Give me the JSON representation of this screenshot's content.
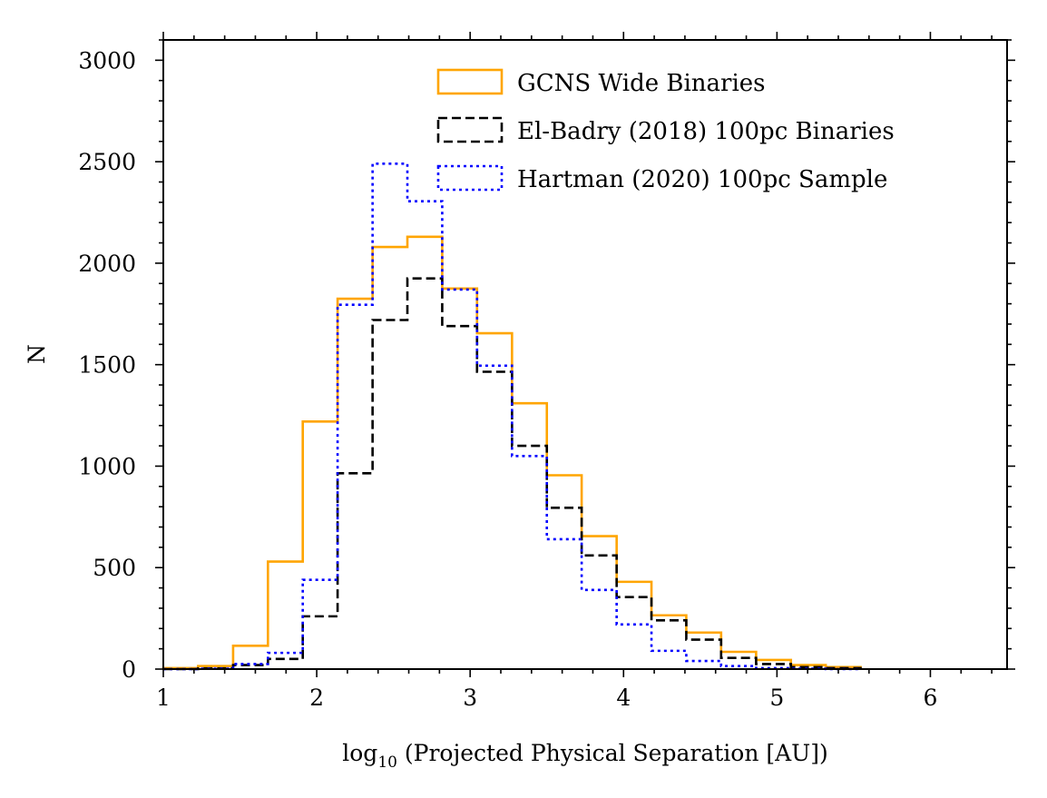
{
  "chart_data": {
    "type": "histogram",
    "title": "",
    "xlabel": {
      "prefix": "log",
      "subscript": "10",
      "suffix": " (Projected Physical Separation [AU])"
    },
    "ylabel": "N",
    "xlim": [
      1,
      6.5
    ],
    "ylim": [
      0,
      3100
    ],
    "x_ticks": [
      1,
      2,
      3,
      4,
      5,
      6
    ],
    "x_tick_labels": [
      "1",
      "2",
      "3",
      "4",
      "5",
      "6"
    ],
    "y_ticks": [
      0,
      500,
      1000,
      1500,
      2000,
      2500,
      3000
    ],
    "y_tick_labels": [
      "0",
      "500",
      "1000",
      "1500",
      "2000",
      "2500",
      "3000"
    ],
    "bin_edges": [
      1.0,
      1.227,
      1.455,
      1.682,
      1.909,
      2.136,
      2.364,
      2.591,
      2.818,
      3.045,
      3.273,
      3.5,
      3.727,
      3.955,
      4.182,
      4.409,
      4.636,
      4.864,
      5.091,
      5.318,
      5.545
    ],
    "series": [
      {
        "name": "GCNS Wide Binaries",
        "color": "#ffa500",
        "style": "solid",
        "values": [
          5,
          15,
          115,
          530,
          1220,
          1825,
          2080,
          2130,
          1875,
          1655,
          1310,
          955,
          655,
          430,
          265,
          180,
          85,
          45,
          20,
          10
        ]
      },
      {
        "name": "El-Badry (2018) 100pc Binaries",
        "color": "#000000",
        "style": "dashed",
        "values": [
          0,
          3,
          20,
          50,
          260,
          965,
          1720,
          1925,
          1690,
          1465,
          1100,
          795,
          560,
          355,
          240,
          145,
          55,
          25,
          10,
          5
        ]
      },
      {
        "name": "Hartman (2020) 100pc Sample",
        "color": "#0000ff",
        "style": "dotted",
        "values": [
          0,
          2,
          25,
          80,
          440,
          1795,
          2490,
          2305,
          1870,
          1495,
          1050,
          640,
          390,
          220,
          90,
          40,
          15,
          5,
          2,
          0
        ]
      }
    ],
    "legend_position": "top-right"
  }
}
